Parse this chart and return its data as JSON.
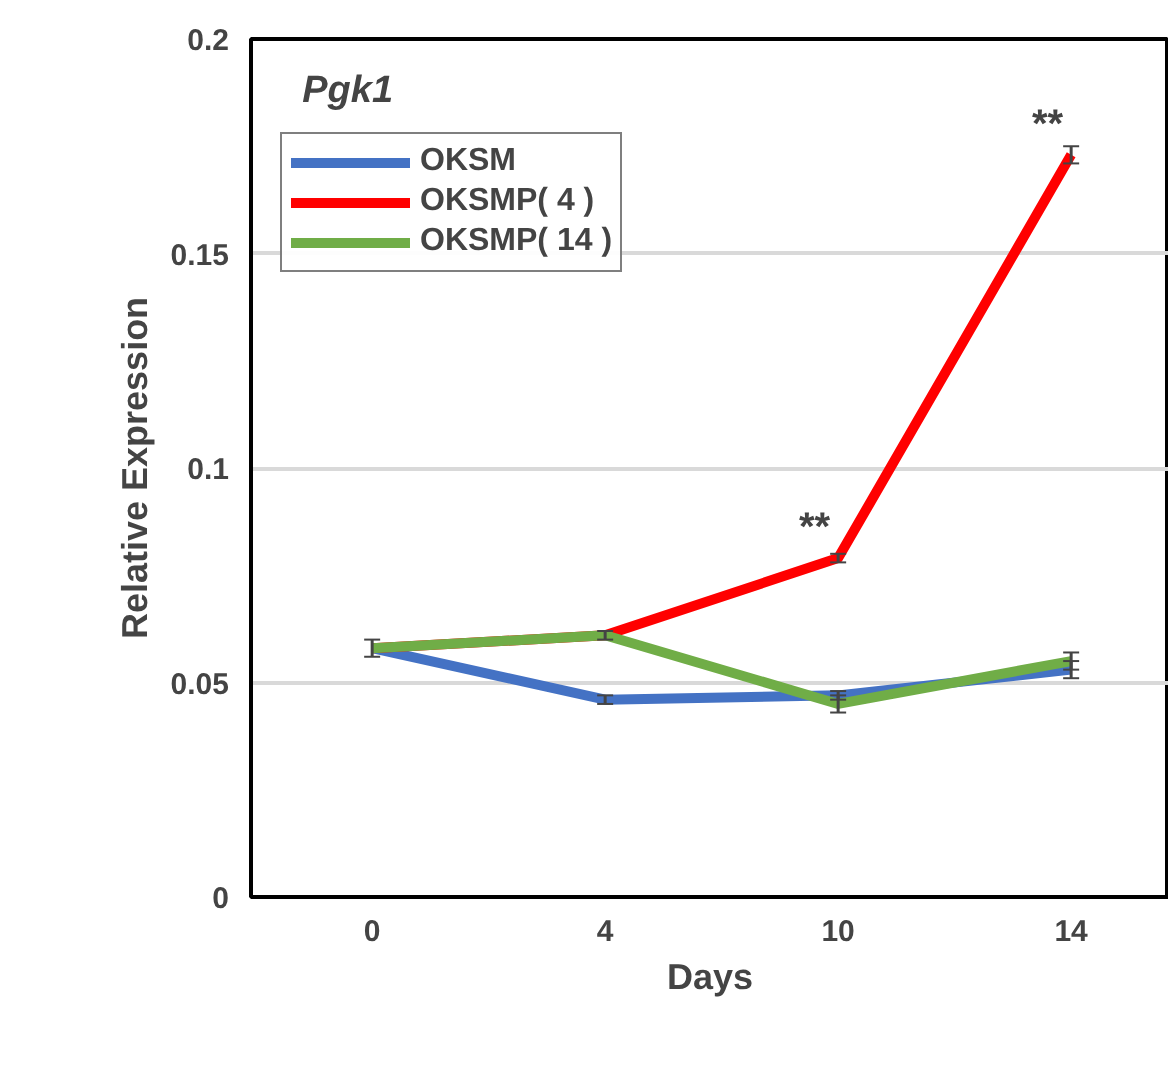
{
  "chart_data": {
    "type": "line",
    "title": "Pgk1",
    "xlabel": "Days",
    "ylabel": "Relative Expression",
    "categories": [
      "0",
      "4",
      "10",
      "14"
    ],
    "series": [
      {
        "name": "OKSM",
        "color": "#4472c4",
        "values": [
          0.058,
          0.046,
          0.047,
          0.053
        ],
        "errors": [
          0.002,
          0.001,
          0.001,
          0.002
        ]
      },
      {
        "name": "OKSMP( 4 )",
        "color": "#ff0000",
        "values": [
          0.058,
          0.061,
          0.079,
          0.173
        ],
        "errors": [
          null,
          0.001,
          0.001,
          0.002
        ]
      },
      {
        "name": "OKSMP( 14 )",
        "color": "#70ad47",
        "values": [
          0.058,
          0.061,
          0.045,
          0.055
        ],
        "errors": [
          null,
          null,
          0.002,
          0.002
        ]
      }
    ],
    "ylim": [
      0,
      0.2
    ],
    "yticks": [
      0,
      0.05,
      0.1,
      0.15,
      0.2
    ],
    "grid": "y",
    "legend": "top left",
    "marker": "none",
    "line_style": "solid",
    "annotations": [
      {
        "text": "**",
        "x": "10",
        "y": 0.079
      },
      {
        "text": "**",
        "x": "14",
        "y": 0.173
      }
    ]
  }
}
